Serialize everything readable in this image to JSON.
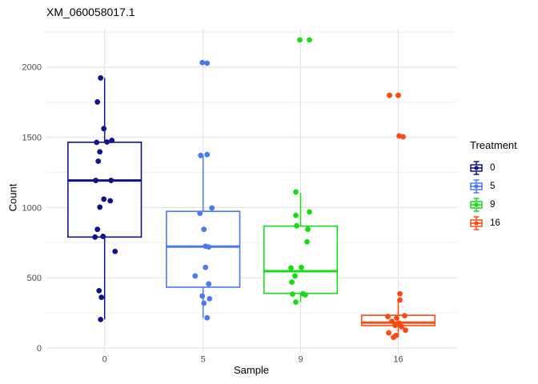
{
  "chart_data": {
    "type": "boxplot",
    "title": "XM_060058017.1",
    "xlabel": "Sample",
    "ylabel": "Count",
    "categories": [
      "0",
      "5",
      "9",
      "16"
    ],
    "y_ticks": [
      0,
      500,
      1000,
      1500,
      2000
    ],
    "y_grid_major": [
      0,
      500,
      1000,
      1500,
      2000
    ],
    "y_grid_minor": [
      250,
      750,
      1250,
      1750,
      2250
    ],
    "ylim": [
      -30,
      2310
    ],
    "grid_on": true,
    "legend": {
      "title": "Treatment",
      "position": "right",
      "entries": [
        {
          "label": "0",
          "color": "#12128C"
        },
        {
          "label": "5",
          "color": "#4A79F0"
        },
        {
          "label": "9",
          "color": "#17DC17"
        },
        {
          "label": "16",
          "color": "#FB4A15"
        }
      ]
    },
    "groups": [
      {
        "category": "0",
        "treatment": "0",
        "color": "#12128C",
        "box": {
          "q1": 790,
          "median": 1193,
          "q3": 1465,
          "whisker_low": 203,
          "whisker_high": 1923
        },
        "points": [
          [
            -5,
            1923
          ],
          [
            -9,
            1752
          ],
          [
            -1,
            1562
          ],
          [
            -10,
            1464
          ],
          [
            3,
            1467
          ],
          [
            9,
            1478
          ],
          [
            -6,
            1397
          ],
          [
            -8,
            1330
          ],
          [
            -11,
            1193
          ],
          [
            8,
            1193
          ],
          [
            -1,
            1060
          ],
          [
            7,
            1048
          ],
          [
            -6,
            1003
          ],
          [
            -9,
            845
          ],
          [
            -12,
            790
          ],
          [
            -2,
            795
          ],
          [
            13,
            688
          ],
          [
            -7,
            408
          ],
          [
            -4,
            361
          ],
          [
            -5,
            203
          ]
        ]
      },
      {
        "category": "5",
        "treatment": "5",
        "color": "#4A79F0",
        "box": {
          "q1": 433,
          "median": 722,
          "q3": 973,
          "whisker_low": 215,
          "whisker_high": 1375
        },
        "points": [
          [
            -1,
            2032
          ],
          [
            5,
            2028
          ],
          [
            -3,
            1371
          ],
          [
            5,
            1377
          ],
          [
            11,
            997
          ],
          [
            -4,
            959
          ],
          [
            1,
            845
          ],
          [
            3,
            725
          ],
          [
            7,
            719
          ],
          [
            3,
            574
          ],
          [
            -10,
            513
          ],
          [
            7,
            456
          ],
          [
            -1,
            370
          ],
          [
            8,
            351
          ],
          [
            1,
            319
          ],
          [
            5,
            215
          ]
        ]
      },
      {
        "category": "9",
        "treatment": "9",
        "color": "#17DC17",
        "box": {
          "q1": 389,
          "median": 547,
          "q3": 868,
          "whisker_low": 327,
          "whisker_high": 1105
        },
        "points": [
          [
            -1,
            2194
          ],
          [
            11,
            2194
          ],
          [
            -6,
            1111
          ],
          [
            11,
            969
          ],
          [
            -6,
            944
          ],
          [
            -5,
            870
          ],
          [
            9,
            845
          ],
          [
            8,
            756
          ],
          [
            -12,
            570
          ],
          [
            1,
            574
          ],
          [
            -7,
            513
          ],
          [
            -11,
            469
          ],
          [
            -10,
            384
          ],
          [
            3,
            386
          ],
          [
            6,
            378
          ],
          [
            -6,
            327
          ]
        ]
      },
      {
        "category": "16",
        "treatment": "16",
        "color": "#FB4A15",
        "box": {
          "q1": 160,
          "median": 181,
          "q3": 233,
          "whisker_low": 76,
          "whisker_high": 342
        },
        "points": [
          [
            -11,
            1799
          ],
          [
            0,
            1799
          ],
          [
            1,
            1510
          ],
          [
            6,
            1504
          ],
          [
            2,
            386
          ],
          [
            2,
            342
          ],
          [
            -13,
            224
          ],
          [
            8,
            230
          ],
          [
            -2,
            213
          ],
          [
            -8,
            190
          ],
          [
            1,
            177
          ],
          [
            -4,
            161
          ],
          [
            4,
            152
          ],
          [
            9,
            127
          ],
          [
            -12,
            108
          ],
          [
            -3,
            89
          ],
          [
            -6,
            76
          ]
        ]
      }
    ],
    "style": {
      "grid_major_color": "#E4E4E4",
      "grid_minor_color": "#EDEDED",
      "tick_label_color": "#4D4D4D",
      "background": "#FFFFFF",
      "box_fill": "#FFFFFF"
    }
  }
}
